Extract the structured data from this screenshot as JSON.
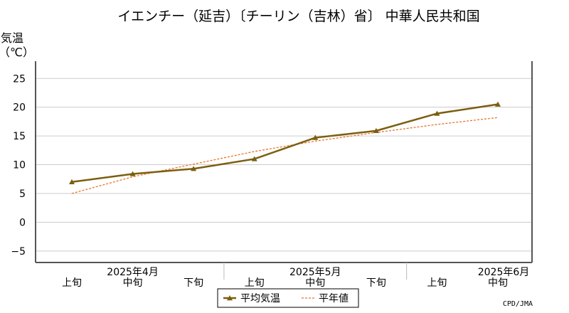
{
  "chart_data": {
    "type": "line",
    "title": "イエンチー（延吉）〔チーリン（吉林）省〕 中華人民共和国",
    "ylabel_line1": "気温",
    "ylabel_line2": "（℃）",
    "ylim": [
      -7,
      28
    ],
    "yticks": [
      -5,
      0,
      5,
      10,
      15,
      20,
      25
    ],
    "categories": [
      "上旬",
      "中旬",
      "下旬",
      "上旬",
      "中旬",
      "下旬",
      "上旬",
      "中旬"
    ],
    "months": [
      {
        "label": "2025年4月",
        "center_index": 1
      },
      {
        "label": "2025年5月",
        "center_index": 4
      },
      {
        "label": "2025年6月",
        "center_index": 7
      }
    ],
    "grid": true,
    "legend_position": "bottom-center",
    "series": [
      {
        "name": "平均気温",
        "color": "#7b5e0f",
        "style": "solid-marker",
        "values": [
          7.0,
          8.4,
          9.3,
          11.0,
          14.7,
          15.9,
          18.9,
          20.5
        ]
      },
      {
        "name": "平年値",
        "color": "#e8742c",
        "style": "dashed",
        "values": [
          5.0,
          7.9,
          10.1,
          12.3,
          14.1,
          15.6,
          17.0,
          18.2
        ]
      }
    ],
    "credit": "CPD/JMA"
  }
}
